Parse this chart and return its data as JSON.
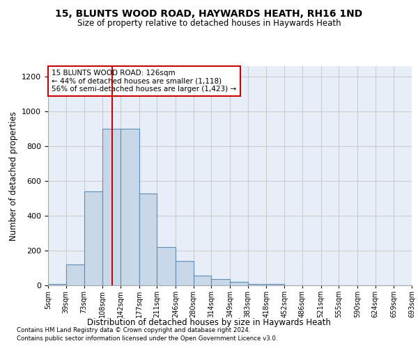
{
  "title": "15, BLUNTS WOOD ROAD, HAYWARDS HEATH, RH16 1ND",
  "subtitle": "Size of property relative to detached houses in Haywards Heath",
  "xlabel": "Distribution of detached houses by size in Haywards Heath",
  "ylabel": "Number of detached properties",
  "footnote1": "Contains HM Land Registry data © Crown copyright and database right 2024.",
  "footnote2": "Contains public sector information licensed under the Open Government Licence v3.0.",
  "annotation_line1": "15 BLUNTS WOOD ROAD: 126sqm",
  "annotation_line2": "← 44% of detached houses are smaller (1,118)",
  "annotation_line3": "56% of semi-detached houses are larger (1,423) →",
  "bar_color": "#c8d8e8",
  "bar_edge_color": "#5b8db8",
  "red_line_color": "#cc0000",
  "annotation_box_color": "#cc0000",
  "grid_color": "#cccccc",
  "bins": [
    5,
    39,
    73,
    108,
    142,
    177,
    211,
    246,
    280,
    314,
    349,
    383,
    418,
    452,
    486,
    521,
    555,
    590,
    624,
    659,
    693
  ],
  "bar_heights": [
    10,
    120,
    540,
    900,
    900,
    530,
    220,
    140,
    55,
    35,
    20,
    10,
    10,
    0,
    0,
    0,
    0,
    0,
    0,
    0
  ],
  "property_size": 126,
  "ylim": [
    0,
    1260
  ],
  "yticks": [
    0,
    200,
    400,
    600,
    800,
    1000,
    1200
  ],
  "background_color": "#ffffff",
  "plot_bg_color": "#e8eef8"
}
